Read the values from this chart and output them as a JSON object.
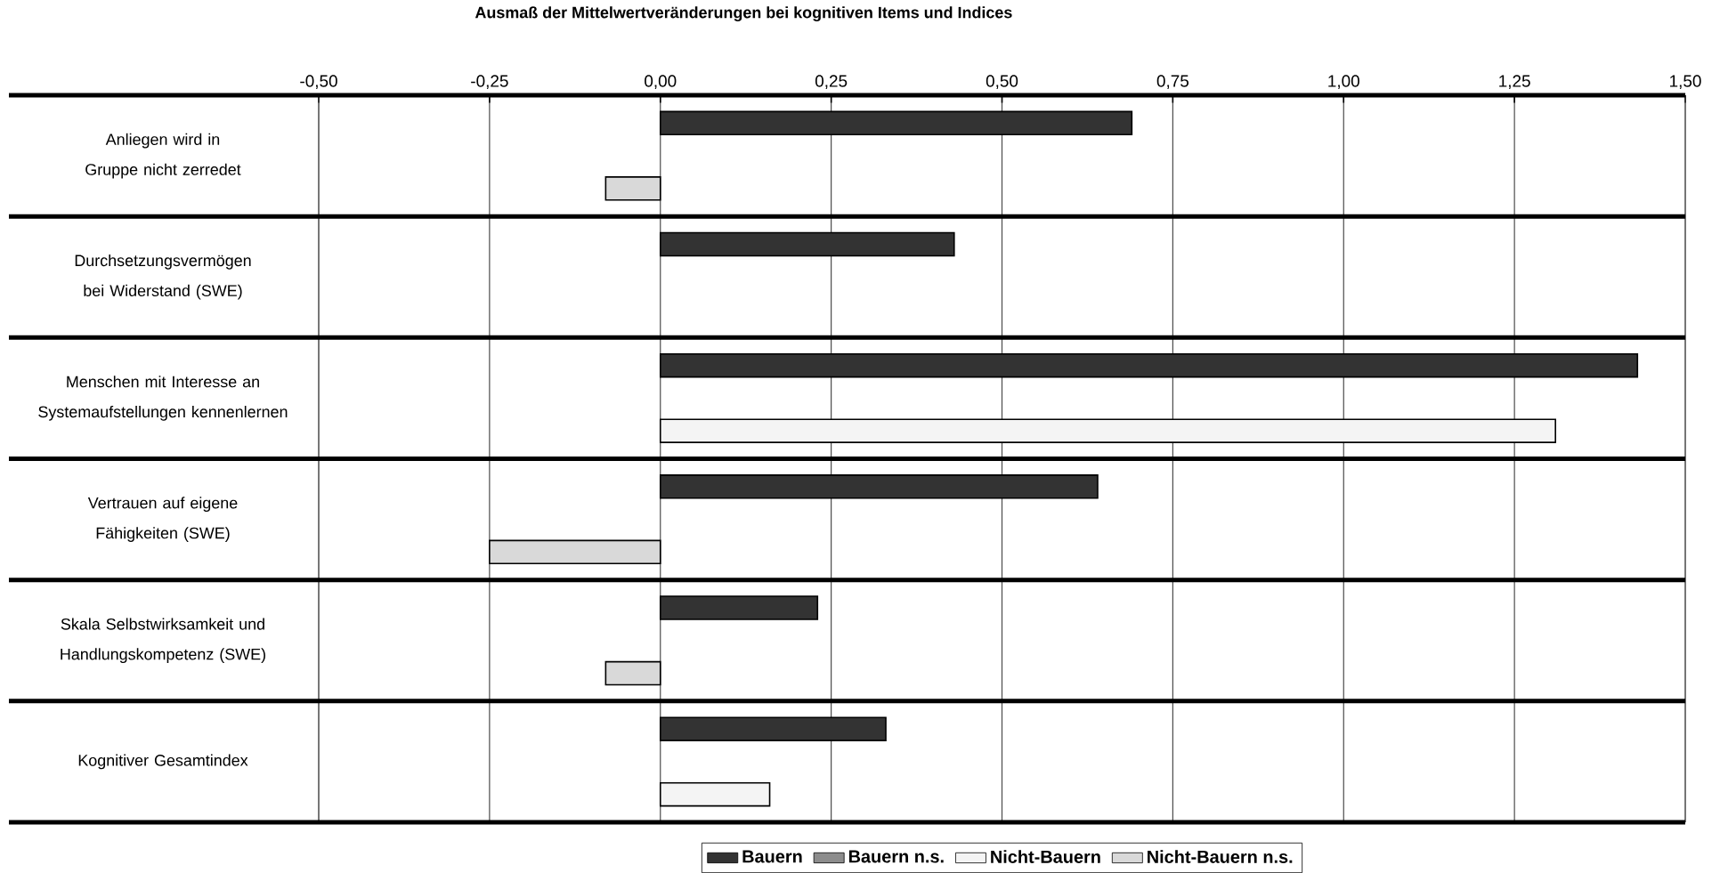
{
  "chart_data": {
    "type": "bar",
    "orientation": "horizontal",
    "title": "Ausmaß der Mittelwertveränderungen bei kognitiven Items und Indices",
    "categories": [
      "Anliegen wird in Gruppe nicht zerredet",
      "Durchsetzungsvermögen bei Widerstand (SWE)",
      "Menschen mit Interesse an Systemaufstellungen kennenlernen",
      "Vertrauen auf eigene Fähigkeiten (SWE)",
      "Skala Selbstwirksamkeit und Handlungskompetenz (SWE)",
      "Kognitiver Gesamtindex"
    ],
    "series": [
      {
        "name": "Bauern",
        "color": "#333333",
        "values": [
          0.69,
          0.43,
          1.43,
          0.64,
          0.23,
          0.33
        ]
      },
      {
        "name": "Bauern n.s.",
        "color": "#8c8c8c",
        "values": [
          null,
          null,
          null,
          null,
          null,
          null
        ]
      },
      {
        "name": "Nicht-Bauern",
        "color": "#f4f4f4",
        "values": [
          null,
          null,
          1.31,
          null,
          null,
          0.16
        ]
      },
      {
        "name": "Nicht-Bauern n.s.",
        "color": "#d9d9d9",
        "values": [
          -0.08,
          null,
          null,
          -0.25,
          -0.08,
          null
        ]
      }
    ],
    "xlim": [
      -0.5,
      1.5
    ],
    "xticks": [
      {
        "value": -0.5,
        "label": "-0,50"
      },
      {
        "value": -0.25,
        "label": "-0,25"
      },
      {
        "value": 0,
        "label": "0,00"
      },
      {
        "value": 0.25,
        "label": "0,25"
      },
      {
        "value": 0.5,
        "label": "0,50"
      },
      {
        "value": 0.75,
        "label": "0,75"
      },
      {
        "value": 1.0,
        "label": "1,00"
      },
      {
        "value": 1.25,
        "label": "1,25"
      },
      {
        "value": 1.5,
        "label": "1,50"
      }
    ],
    "grid": true,
    "legend": "bottom"
  }
}
